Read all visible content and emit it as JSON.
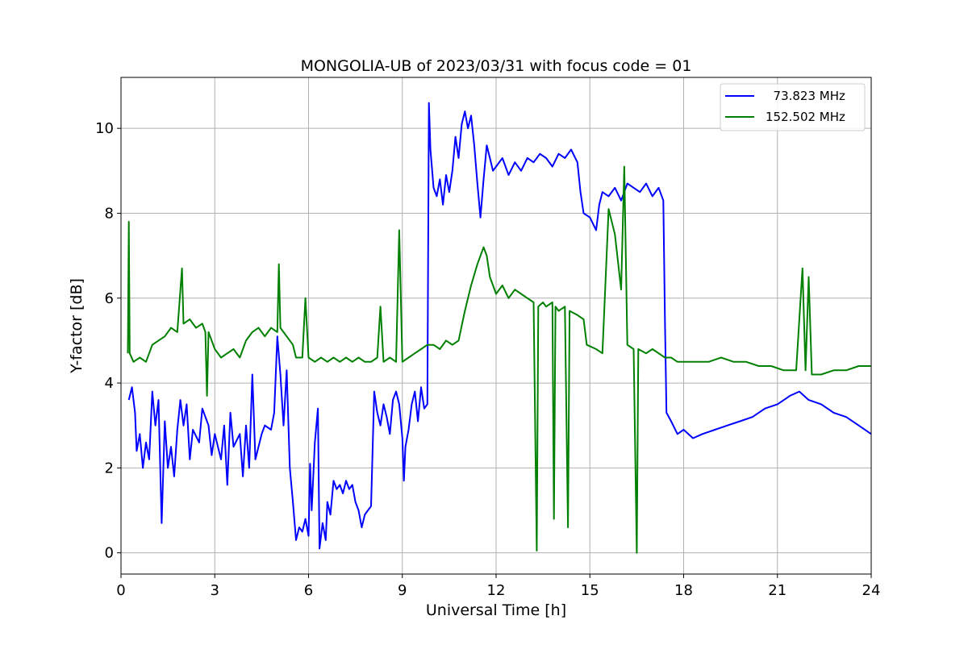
{
  "chart_data": {
    "type": "line",
    "title": "MONGOLIA-UB of 2023/03/31 with focus code = 01",
    "xlabel": "Universal Time [h]",
    "ylabel": "Y-factor [dB]",
    "xlim": [
      0,
      24
    ],
    "ylim": [
      -0.5,
      11.2
    ],
    "xticks": [
      0,
      3,
      6,
      9,
      12,
      15,
      18,
      21,
      24
    ],
    "yticks": [
      0,
      2,
      4,
      6,
      8,
      10
    ],
    "grid": true,
    "legend_position": "top-right",
    "series": [
      {
        "name": "  73.823 MHz",
        "color": "#0000ff",
        "points": [
          [
            0.25,
            3.6
          ],
          [
            0.35,
            3.9
          ],
          [
            0.45,
            3.3
          ],
          [
            0.5,
            2.4
          ],
          [
            0.6,
            2.8
          ],
          [
            0.7,
            2.0
          ],
          [
            0.8,
            2.6
          ],
          [
            0.9,
            2.2
          ],
          [
            1.0,
            3.8
          ],
          [
            1.1,
            3.0
          ],
          [
            1.2,
            3.6
          ],
          [
            1.3,
            0.7
          ],
          [
            1.4,
            3.1
          ],
          [
            1.5,
            2.0
          ],
          [
            1.6,
            2.5
          ],
          [
            1.7,
            1.8
          ],
          [
            1.8,
            2.9
          ],
          [
            1.9,
            3.6
          ],
          [
            2.0,
            3.0
          ],
          [
            2.1,
            3.5
          ],
          [
            2.2,
            2.2
          ],
          [
            2.3,
            2.9
          ],
          [
            2.5,
            2.6
          ],
          [
            2.6,
            3.4
          ],
          [
            2.8,
            3.0
          ],
          [
            2.9,
            2.3
          ],
          [
            3.0,
            2.8
          ],
          [
            3.2,
            2.2
          ],
          [
            3.3,
            3.0
          ],
          [
            3.4,
            1.6
          ],
          [
            3.5,
            3.3
          ],
          [
            3.6,
            2.5
          ],
          [
            3.8,
            2.8
          ],
          [
            3.9,
            1.8
          ],
          [
            4.0,
            3.0
          ],
          [
            4.1,
            2.0
          ],
          [
            4.2,
            4.2
          ],
          [
            4.3,
            2.2
          ],
          [
            4.5,
            2.8
          ],
          [
            4.6,
            3.0
          ],
          [
            4.8,
            2.9
          ],
          [
            4.9,
            3.3
          ],
          [
            5.0,
            5.1
          ],
          [
            5.1,
            4.2
          ],
          [
            5.2,
            3.0
          ],
          [
            5.3,
            4.3
          ],
          [
            5.4,
            2.0
          ],
          [
            5.5,
            1.2
          ],
          [
            5.6,
            0.3
          ],
          [
            5.7,
            0.6
          ],
          [
            5.8,
            0.5
          ],
          [
            5.9,
            0.8
          ],
          [
            6.0,
            0.4
          ],
          [
            6.05,
            2.1
          ],
          [
            6.1,
            1.0
          ],
          [
            6.2,
            2.6
          ],
          [
            6.3,
            3.4
          ],
          [
            6.35,
            0.1
          ],
          [
            6.45,
            0.7
          ],
          [
            6.55,
            0.3
          ],
          [
            6.6,
            1.2
          ],
          [
            6.7,
            0.9
          ],
          [
            6.8,
            1.7
          ],
          [
            6.9,
            1.5
          ],
          [
            7.0,
            1.6
          ],
          [
            7.1,
            1.4
          ],
          [
            7.2,
            1.7
          ],
          [
            7.3,
            1.5
          ],
          [
            7.4,
            1.6
          ],
          [
            7.5,
            1.2
          ],
          [
            7.6,
            1.0
          ],
          [
            7.7,
            0.6
          ],
          [
            7.8,
            0.9
          ],
          [
            7.9,
            1.0
          ],
          [
            8.0,
            1.1
          ],
          [
            8.1,
            3.8
          ],
          [
            8.2,
            3.3
          ],
          [
            8.3,
            3.0
          ],
          [
            8.4,
            3.5
          ],
          [
            8.5,
            3.2
          ],
          [
            8.6,
            2.8
          ],
          [
            8.7,
            3.6
          ],
          [
            8.8,
            3.8
          ],
          [
            8.9,
            3.5
          ],
          [
            9.0,
            2.7
          ],
          [
            9.05,
            1.7
          ],
          [
            9.1,
            2.5
          ],
          [
            9.2,
            2.9
          ],
          [
            9.3,
            3.5
          ],
          [
            9.4,
            3.8
          ],
          [
            9.5,
            3.1
          ],
          [
            9.6,
            3.9
          ],
          [
            9.7,
            3.4
          ],
          [
            9.8,
            3.5
          ],
          [
            9.85,
            10.6
          ],
          [
            9.9,
            9.5
          ],
          [
            10.0,
            8.6
          ],
          [
            10.1,
            8.4
          ],
          [
            10.2,
            8.8
          ],
          [
            10.3,
            8.2
          ],
          [
            10.4,
            8.9
          ],
          [
            10.5,
            8.5
          ],
          [
            10.6,
            9.0
          ],
          [
            10.7,
            9.8
          ],
          [
            10.8,
            9.3
          ],
          [
            10.9,
            10.1
          ],
          [
            11.0,
            10.4
          ],
          [
            11.1,
            10.0
          ],
          [
            11.2,
            10.3
          ],
          [
            11.3,
            9.6
          ],
          [
            11.4,
            8.7
          ],
          [
            11.5,
            7.9
          ],
          [
            11.6,
            8.8
          ],
          [
            11.7,
            9.6
          ],
          [
            11.8,
            9.3
          ],
          [
            11.9,
            9.0
          ],
          [
            12.0,
            9.1
          ],
          [
            12.2,
            9.3
          ],
          [
            12.4,
            8.9
          ],
          [
            12.6,
            9.2
          ],
          [
            12.8,
            9.0
          ],
          [
            13.0,
            9.3
          ],
          [
            13.2,
            9.2
          ],
          [
            13.4,
            9.4
          ],
          [
            13.6,
            9.3
          ],
          [
            13.8,
            9.1
          ],
          [
            14.0,
            9.4
          ],
          [
            14.2,
            9.3
          ],
          [
            14.4,
            9.5
          ],
          [
            14.6,
            9.2
          ],
          [
            14.7,
            8.5
          ],
          [
            14.8,
            8.0
          ],
          [
            15.0,
            7.9
          ],
          [
            15.2,
            7.6
          ],
          [
            15.3,
            8.2
          ],
          [
            15.4,
            8.5
          ],
          [
            15.6,
            8.4
          ],
          [
            15.8,
            8.6
          ],
          [
            16.0,
            8.3
          ],
          [
            16.2,
            8.7
          ],
          [
            16.4,
            8.6
          ],
          [
            16.6,
            8.5
          ],
          [
            16.8,
            8.7
          ],
          [
            17.0,
            8.4
          ],
          [
            17.2,
            8.6
          ],
          [
            17.35,
            8.3
          ],
          [
            17.4,
            5.5
          ],
          [
            17.45,
            3.3
          ],
          [
            17.6,
            3.1
          ],
          [
            17.8,
            2.8
          ],
          [
            18.0,
            2.9
          ],
          [
            18.3,
            2.7
          ],
          [
            18.6,
            2.8
          ],
          [
            19.0,
            2.9
          ],
          [
            19.4,
            3.0
          ],
          [
            19.8,
            3.1
          ],
          [
            20.2,
            3.2
          ],
          [
            20.6,
            3.4
          ],
          [
            21.0,
            3.5
          ],
          [
            21.4,
            3.7
          ],
          [
            21.7,
            3.8
          ],
          [
            22.0,
            3.6
          ],
          [
            22.4,
            3.5
          ],
          [
            22.8,
            3.3
          ],
          [
            23.2,
            3.2
          ],
          [
            23.6,
            3.0
          ],
          [
            24.0,
            2.8
          ]
        ]
      },
      {
        "name": "152.502 MHz",
        "color": "#008000",
        "points": [
          [
            0.22,
            4.7
          ],
          [
            0.25,
            7.8
          ],
          [
            0.28,
            4.7
          ],
          [
            0.4,
            4.5
          ],
          [
            0.6,
            4.6
          ],
          [
            0.8,
            4.5
          ],
          [
            1.0,
            4.9
          ],
          [
            1.2,
            5.0
          ],
          [
            1.4,
            5.1
          ],
          [
            1.6,
            5.3
          ],
          [
            1.8,
            5.2
          ],
          [
            1.95,
            6.7
          ],
          [
            2.0,
            5.4
          ],
          [
            2.2,
            5.5
          ],
          [
            2.4,
            5.3
          ],
          [
            2.6,
            5.4
          ],
          [
            2.7,
            5.2
          ],
          [
            2.75,
            3.7
          ],
          [
            2.8,
            5.2
          ],
          [
            3.0,
            4.8
          ],
          [
            3.2,
            4.6
          ],
          [
            3.4,
            4.7
          ],
          [
            3.6,
            4.8
          ],
          [
            3.8,
            4.6
          ],
          [
            4.0,
            5.0
          ],
          [
            4.2,
            5.2
          ],
          [
            4.4,
            5.3
          ],
          [
            4.6,
            5.1
          ],
          [
            4.8,
            5.3
          ],
          [
            5.0,
            5.2
          ],
          [
            5.05,
            6.8
          ],
          [
            5.1,
            5.3
          ],
          [
            5.3,
            5.1
          ],
          [
            5.5,
            4.9
          ],
          [
            5.6,
            4.6
          ],
          [
            5.8,
            4.6
          ],
          [
            5.9,
            6.0
          ],
          [
            6.0,
            4.6
          ],
          [
            6.2,
            4.5
          ],
          [
            6.4,
            4.6
          ],
          [
            6.6,
            4.5
          ],
          [
            6.8,
            4.6
          ],
          [
            7.0,
            4.5
          ],
          [
            7.2,
            4.6
          ],
          [
            7.4,
            4.5
          ],
          [
            7.6,
            4.6
          ],
          [
            7.8,
            4.5
          ],
          [
            8.0,
            4.5
          ],
          [
            8.2,
            4.6
          ],
          [
            8.3,
            5.8
          ],
          [
            8.4,
            4.5
          ],
          [
            8.6,
            4.6
          ],
          [
            8.8,
            4.5
          ],
          [
            8.9,
            7.6
          ],
          [
            9.0,
            4.5
          ],
          [
            9.2,
            4.6
          ],
          [
            9.4,
            4.7
          ],
          [
            9.6,
            4.8
          ],
          [
            9.8,
            4.9
          ],
          [
            10.0,
            4.9
          ],
          [
            10.2,
            4.8
          ],
          [
            10.4,
            5.0
          ],
          [
            10.6,
            4.9
          ],
          [
            10.8,
            5.0
          ],
          [
            11.0,
            5.7
          ],
          [
            11.2,
            6.3
          ],
          [
            11.4,
            6.8
          ],
          [
            11.6,
            7.2
          ],
          [
            11.7,
            7.0
          ],
          [
            11.8,
            6.5
          ],
          [
            12.0,
            6.1
          ],
          [
            12.2,
            6.3
          ],
          [
            12.4,
            6.0
          ],
          [
            12.6,
            6.2
          ],
          [
            12.8,
            6.1
          ],
          [
            13.0,
            6.0
          ],
          [
            13.2,
            5.9
          ],
          [
            13.3,
            0.05
          ],
          [
            13.35,
            5.8
          ],
          [
            13.5,
            5.9
          ],
          [
            13.6,
            5.8
          ],
          [
            13.8,
            5.9
          ],
          [
            13.85,
            0.8
          ],
          [
            13.9,
            5.8
          ],
          [
            14.0,
            5.7
          ],
          [
            14.2,
            5.8
          ],
          [
            14.3,
            0.6
          ],
          [
            14.35,
            5.7
          ],
          [
            14.6,
            5.6
          ],
          [
            14.8,
            5.5
          ],
          [
            14.9,
            4.9
          ],
          [
            15.2,
            4.8
          ],
          [
            15.4,
            4.7
          ],
          [
            15.6,
            8.1
          ],
          [
            15.8,
            7.5
          ],
          [
            16.0,
            6.2
          ],
          [
            16.1,
            9.1
          ],
          [
            16.2,
            4.9
          ],
          [
            16.4,
            4.8
          ],
          [
            16.5,
            0.0
          ],
          [
            16.55,
            4.8
          ],
          [
            16.8,
            4.7
          ],
          [
            17.0,
            4.8
          ],
          [
            17.2,
            4.7
          ],
          [
            17.4,
            4.6
          ],
          [
            17.6,
            4.6
          ],
          [
            17.8,
            4.5
          ],
          [
            18.0,
            4.5
          ],
          [
            18.4,
            4.5
          ],
          [
            18.8,
            4.5
          ],
          [
            19.2,
            4.6
          ],
          [
            19.6,
            4.5
          ],
          [
            20.0,
            4.5
          ],
          [
            20.4,
            4.4
          ],
          [
            20.8,
            4.4
          ],
          [
            21.2,
            4.3
          ],
          [
            21.6,
            4.3
          ],
          [
            21.8,
            6.7
          ],
          [
            21.9,
            4.3
          ],
          [
            22.0,
            6.5
          ],
          [
            22.1,
            4.2
          ],
          [
            22.4,
            4.2
          ],
          [
            22.8,
            4.3
          ],
          [
            23.2,
            4.3
          ],
          [
            23.6,
            4.4
          ],
          [
            24.0,
            4.4
          ]
        ]
      }
    ]
  }
}
